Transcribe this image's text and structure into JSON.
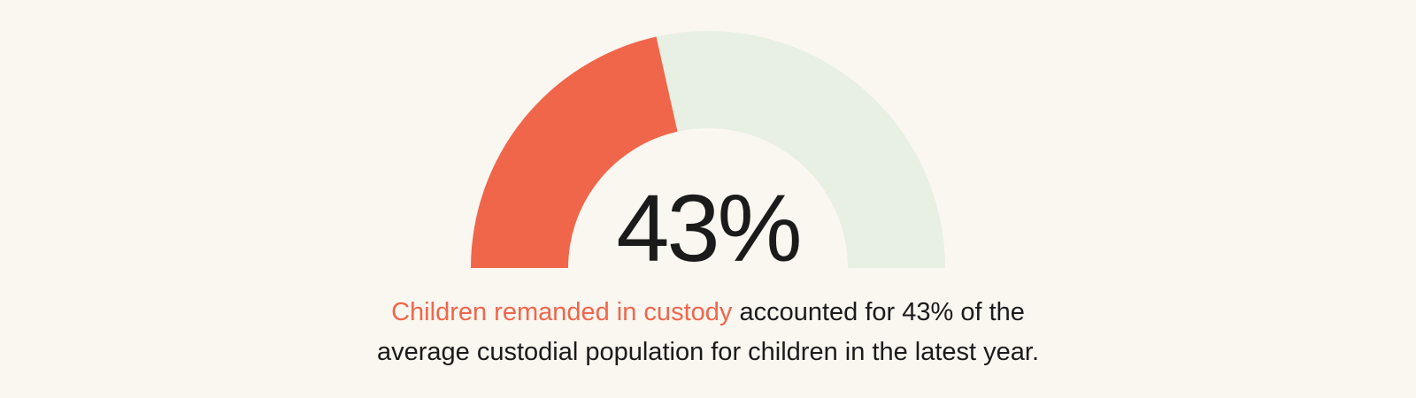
{
  "page": {
    "background_color": "#faf6f0",
    "text_color": "#1b1b1b",
    "accent_color": "#f0664b"
  },
  "chart_data": {
    "type": "pie",
    "subtype": "half-donut-gauge",
    "title": "",
    "center_label": "43%",
    "value": 43,
    "max": 100,
    "unit": "%",
    "slices": [
      {
        "name": "value",
        "value": 43,
        "color": "#f0664b"
      },
      {
        "name": "track",
        "value": 57,
        "color": "#e8efe3"
      }
    ],
    "geometry": {
      "start_angle_deg": 180,
      "end_angle_deg": 0,
      "outer_radius": 268,
      "inner_radius": 158
    }
  },
  "caption": {
    "line1_highlight": "Children remanded in custody",
    "line1_rest": " accounted for 43% of the",
    "line2": "average custodial population for children in the latest year.",
    "highlight_color": "#f0664b",
    "text_color": "#1b1b1b"
  }
}
